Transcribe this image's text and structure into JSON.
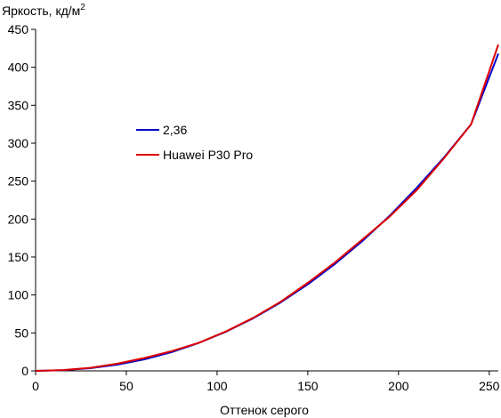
{
  "chart_data": {
    "type": "line",
    "title": "",
    "ylabel": "Яркость, кд/м",
    "ylabel_sup": "2",
    "xlabel": "Оттенок серого",
    "xlim": [
      0,
      255
    ],
    "ylim": [
      0,
      450
    ],
    "x_ticks": [
      0,
      50,
      100,
      150,
      200,
      250
    ],
    "y_ticks": [
      0,
      50,
      100,
      150,
      200,
      250,
      300,
      350,
      400,
      450
    ],
    "grid": false,
    "legend_position": "center-left",
    "series": [
      {
        "name": "2,36",
        "color": "#0000cc",
        "x": [
          0,
          15,
          30,
          45,
          60,
          75,
          90,
          105,
          120,
          135,
          150,
          165,
          180,
          195,
          210,
          225,
          240,
          255
        ],
        "y": [
          0,
          0.8,
          3.5,
          8.2,
          15.2,
          24.7,
          36.9,
          51.7,
          69.4,
          90.1,
          114,
          141,
          171,
          204,
          241,
          281,
          325,
          418
        ]
      },
      {
        "name": "Huawei P30 Pro",
        "color": "#dd0000",
        "x": [
          0,
          15,
          30,
          45,
          60,
          75,
          90,
          105,
          120,
          135,
          150,
          165,
          180,
          195,
          210,
          225,
          240,
          255
        ],
        "y": [
          0,
          1.0,
          4.0,
          9.5,
          17.0,
          26.0,
          37.0,
          52.0,
          70.0,
          91.0,
          116,
          143,
          173,
          203,
          238,
          280,
          325,
          430
        ]
      }
    ]
  }
}
